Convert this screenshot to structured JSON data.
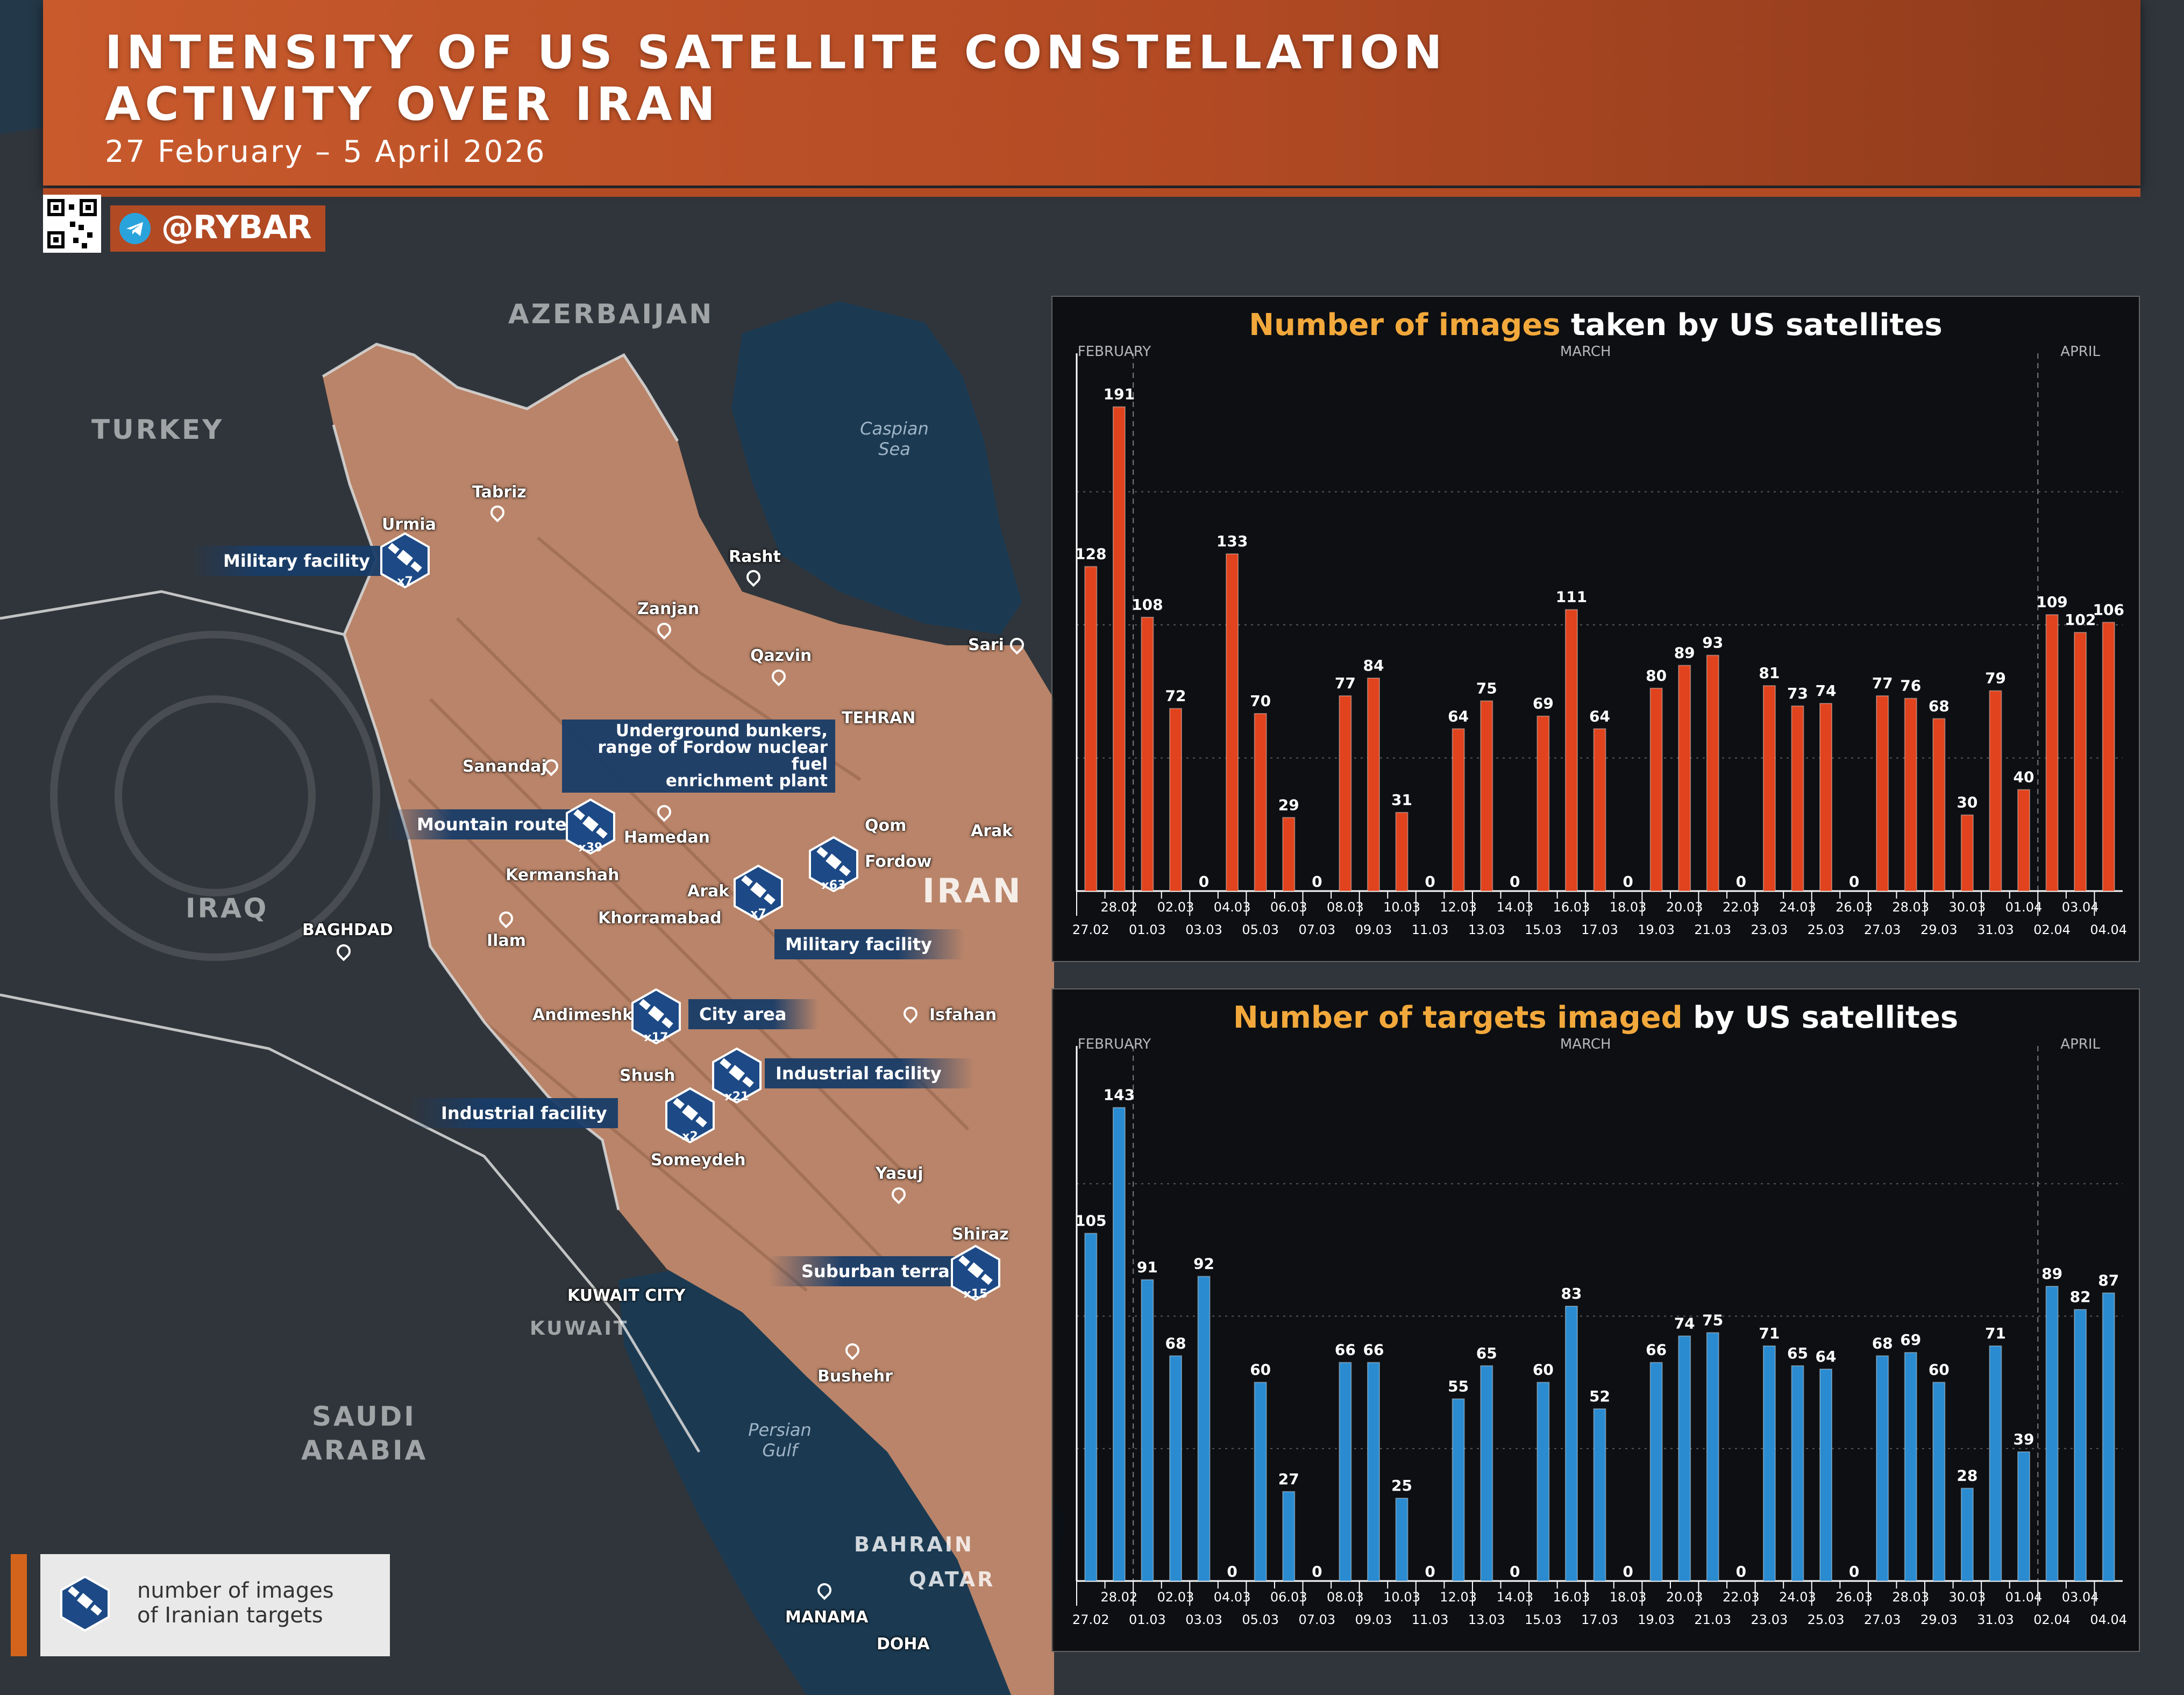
{
  "header": {
    "title_line1": "INTENSITY OF US SATELLITE CONSTELLATION",
    "title_line2": "ACTIVITY OVER IRAN",
    "date_range": "27 February – 5 April 2026",
    "handle": "@RYBAR"
  },
  "map": {
    "countries": {
      "azerbaijan": "AZERBAIJAN",
      "turkey": "TURKEY",
      "iraq": "IRAQ",
      "iran": "IRAN",
      "saudi_arabia_1": "SAUDI",
      "saudi_arabia_2": "ARABIA",
      "kuwait": "KUWAIT",
      "bahrain": "BAHRAIN",
      "qatar": "QATAR"
    },
    "water": {
      "caspian_1": "Caspian",
      "caspian_2": "Sea",
      "gulf_1": "Persian",
      "gulf_2": "Gulf"
    },
    "cities": {
      "tabriz": "Tabriz",
      "urmia": "Urmia",
      "rasht": "Rasht",
      "zanjan": "Zanjan",
      "sari": "Sari",
      "qazvin": "Qazvin",
      "tehran": "TEHRAN",
      "sanandaj": "Sanandaj",
      "qom": "Qom",
      "hamedan": "Hamedan",
      "arak_e": "Arak",
      "kermanshah": "Kermanshah",
      "fordow": "Fordow",
      "arak": "Arak",
      "khorramabad": "Khorramabad",
      "baghdad": "BAGHDAD",
      "ilam": "Ilam",
      "andimeshk": "Andimeshk",
      "isfahan": "Isfahan",
      "shush": "Shush",
      "someydeh": "Someydeh",
      "yasuj": "Yasuj",
      "shiraz": "Shiraz",
      "kuwait_city": "KUWAIT CITY",
      "bushehr": "Bushehr",
      "manama": "MANAMA",
      "doha": "DOHA"
    },
    "targets": {
      "urmia": {
        "label": "Military facility",
        "count": "x7"
      },
      "kermanshah": {
        "label": "Mountain route",
        "count": "x39"
      },
      "fordow_1": {
        "label": "Underground bunkers,"
      },
      "fordow_2": {
        "label": "range of Fordow nuclear fuel"
      },
      "fordow_3": {
        "label": "enrichment plant"
      },
      "fordow": {
        "count": "x63"
      },
      "arak": {
        "label": "Military facility",
        "count": "x7"
      },
      "andimeshk": {
        "label": "City area",
        "count": "x17"
      },
      "shush": {
        "label": "Industrial facility",
        "count": "x21"
      },
      "someydeh": {
        "label": "Industrial facility",
        "count": "x2"
      },
      "shiraz": {
        "label": "Suburban terrain",
        "count": "x15"
      }
    },
    "hex_color": "#1d4a86"
  },
  "legend": {
    "line1": "number of images",
    "line2": "of Iranian targets"
  },
  "chart_data": [
    {
      "type": "bar",
      "title_highlight": "Number of images",
      "title_rest": " taken by US satellites",
      "color": "#e0431d",
      "months": [
        "FEBRUARY",
        "MARCH",
        "APRIL"
      ],
      "categories": [
        "27.02",
        "28.02",
        "01.03",
        "02.03",
        "03.03",
        "04.03",
        "05.03",
        "06.03",
        "07.03",
        "08.03",
        "09.03",
        "10.03",
        "11.03",
        "12.03",
        "13.03",
        "14.03",
        "15.03",
        "16.03",
        "17.03",
        "18.03",
        "19.03",
        "20.03",
        "21.03",
        "22.03",
        "23.03",
        "24.03",
        "25.03",
        "26.03",
        "27.03",
        "28.03",
        "29.03",
        "30.03",
        "31.03",
        "01.04",
        "02.04",
        "03.04",
        "04.04"
      ],
      "values": [
        128,
        191,
        108,
        72,
        0,
        133,
        70,
        29,
        0,
        77,
        84,
        31,
        0,
        64,
        75,
        0,
        69,
        111,
        64,
        0,
        80,
        89,
        93,
        0,
        81,
        73,
        74,
        0,
        77,
        76,
        68,
        30,
        79,
        40,
        109,
        102,
        106
      ],
      "ylim": [
        0,
        210
      ],
      "grid": true
    },
    {
      "type": "bar",
      "title_highlight": "Number of targets imaged",
      "title_rest": " by US satellites",
      "color": "#2a8bd0",
      "months": [
        "FEBRUARY",
        "MARCH",
        "APRIL"
      ],
      "categories": [
        "27.02",
        "28.02",
        "01.03",
        "02.03",
        "03.03",
        "04.03",
        "05.03",
        "06.03",
        "07.03",
        "08.03",
        "09.03",
        "10.03",
        "11.03",
        "12.03",
        "13.03",
        "14.03",
        "15.03",
        "16.03",
        "17.03",
        "18.03",
        "19.03",
        "20.03",
        "21.03",
        "22.03",
        "23.03",
        "24.03",
        "25.03",
        "26.03",
        "27.03",
        "28.03",
        "29.03",
        "30.03",
        "31.03",
        "01.04",
        "02.04",
        "03.04",
        "04.04"
      ],
      "values": [
        105,
        143,
        91,
        68,
        92,
        0,
        60,
        27,
        0,
        66,
        66,
        25,
        0,
        55,
        65,
        0,
        60,
        83,
        52,
        0,
        66,
        74,
        75,
        0,
        71,
        65,
        64,
        0,
        68,
        69,
        60,
        28,
        71,
        39,
        89,
        82,
        87
      ],
      "ylim": [
        0,
        160
      ],
      "grid": true
    }
  ]
}
